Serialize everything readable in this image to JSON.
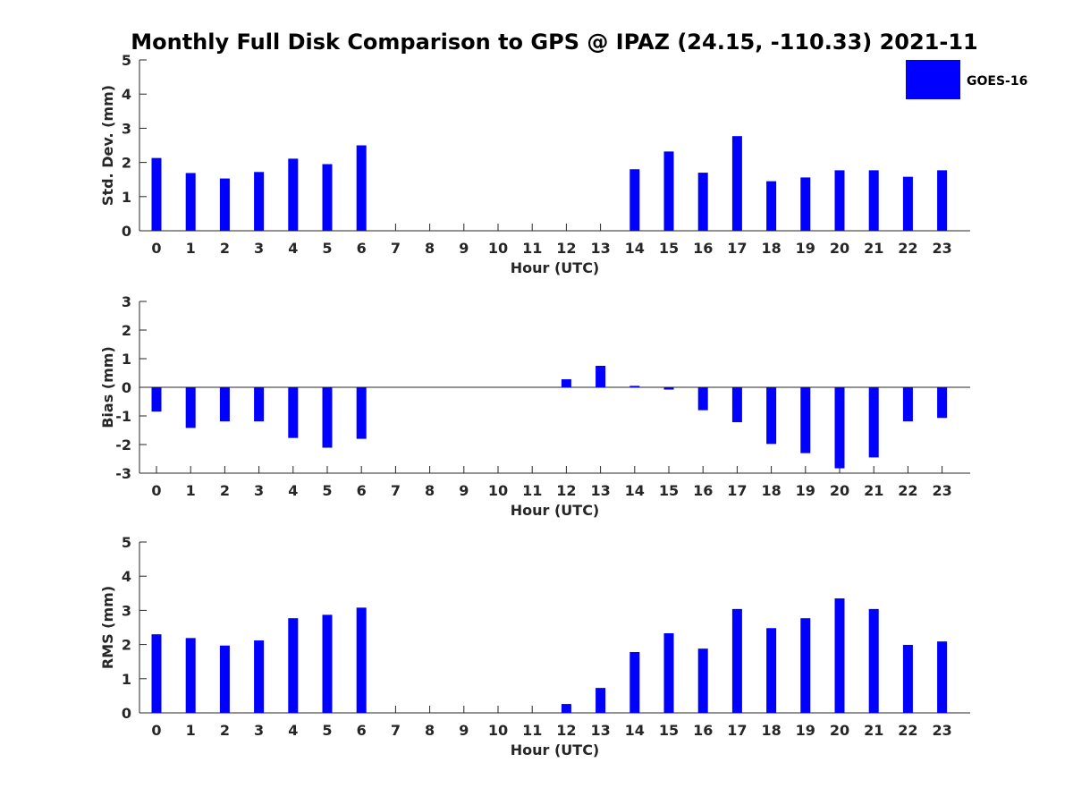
{
  "title": "Monthly Full Disk Comparison to GPS @ IPAZ (24.15, -110.33) 2021-11",
  "legend": {
    "label": "GOES-16",
    "placement": "top-right"
  },
  "colors": {
    "bar": "#0000ff",
    "axis": "#262626"
  },
  "chart_data": [
    {
      "type": "bar",
      "xlabel": "Hour (UTC)",
      "ylabel": "Std. Dev. (mm)",
      "ylim": [
        0,
        5
      ],
      "yticks": [
        0,
        1,
        2,
        3,
        4,
        5
      ],
      "categories": [
        "0",
        "1",
        "2",
        "3",
        "4",
        "5",
        "6",
        "7",
        "8",
        "9",
        "10",
        "11",
        "12",
        "13",
        "14",
        "15",
        "16",
        "17",
        "18",
        "19",
        "20",
        "21",
        "22",
        "23"
      ],
      "series": [
        {
          "name": "GOES-16",
          "values": [
            2.13,
            1.69,
            1.53,
            1.72,
            2.11,
            1.95,
            2.5,
            null,
            null,
            null,
            null,
            null,
            null,
            null,
            1.8,
            2.32,
            1.7,
            2.77,
            1.45,
            1.56,
            1.77,
            1.77,
            1.58,
            1.77
          ]
        }
      ]
    },
    {
      "type": "bar",
      "xlabel": "Hour (UTC)",
      "ylabel": "Bias (mm)",
      "ylim": [
        -3,
        3
      ],
      "yticks": [
        -3,
        -2,
        -1,
        0,
        1,
        2,
        3
      ],
      "zero_line": true,
      "categories": [
        "0",
        "1",
        "2",
        "3",
        "4",
        "5",
        "6",
        "7",
        "8",
        "9",
        "10",
        "11",
        "12",
        "13",
        "14",
        "15",
        "16",
        "17",
        "18",
        "19",
        "20",
        "21",
        "22",
        "23"
      ],
      "series": [
        {
          "name": "GOES-16",
          "values": [
            -0.85,
            -1.42,
            -1.19,
            -1.19,
            -1.77,
            -2.11,
            -1.8,
            null,
            null,
            null,
            null,
            null,
            0.28,
            0.75,
            0.05,
            -0.08,
            -0.8,
            -1.22,
            -1.98,
            -2.3,
            -2.83,
            -2.45,
            -1.19,
            -1.07
          ]
        }
      ]
    },
    {
      "type": "bar",
      "xlabel": "Hour (UTC)",
      "ylabel": "RMS (mm)",
      "ylim": [
        0,
        5
      ],
      "yticks": [
        0,
        1,
        2,
        3,
        4,
        5
      ],
      "categories": [
        "0",
        "1",
        "2",
        "3",
        "4",
        "5",
        "6",
        "7",
        "8",
        "9",
        "10",
        "11",
        "12",
        "13",
        "14",
        "15",
        "16",
        "17",
        "18",
        "19",
        "20",
        "21",
        "22",
        "23"
      ],
      "series": [
        {
          "name": "GOES-16",
          "values": [
            2.3,
            2.19,
            1.97,
            2.12,
            2.77,
            2.87,
            3.08,
            null,
            null,
            null,
            null,
            null,
            0.26,
            0.73,
            1.78,
            2.33,
            1.88,
            3.04,
            2.48,
            2.77,
            3.35,
            3.04,
            1.99,
            2.09
          ]
        }
      ]
    }
  ]
}
